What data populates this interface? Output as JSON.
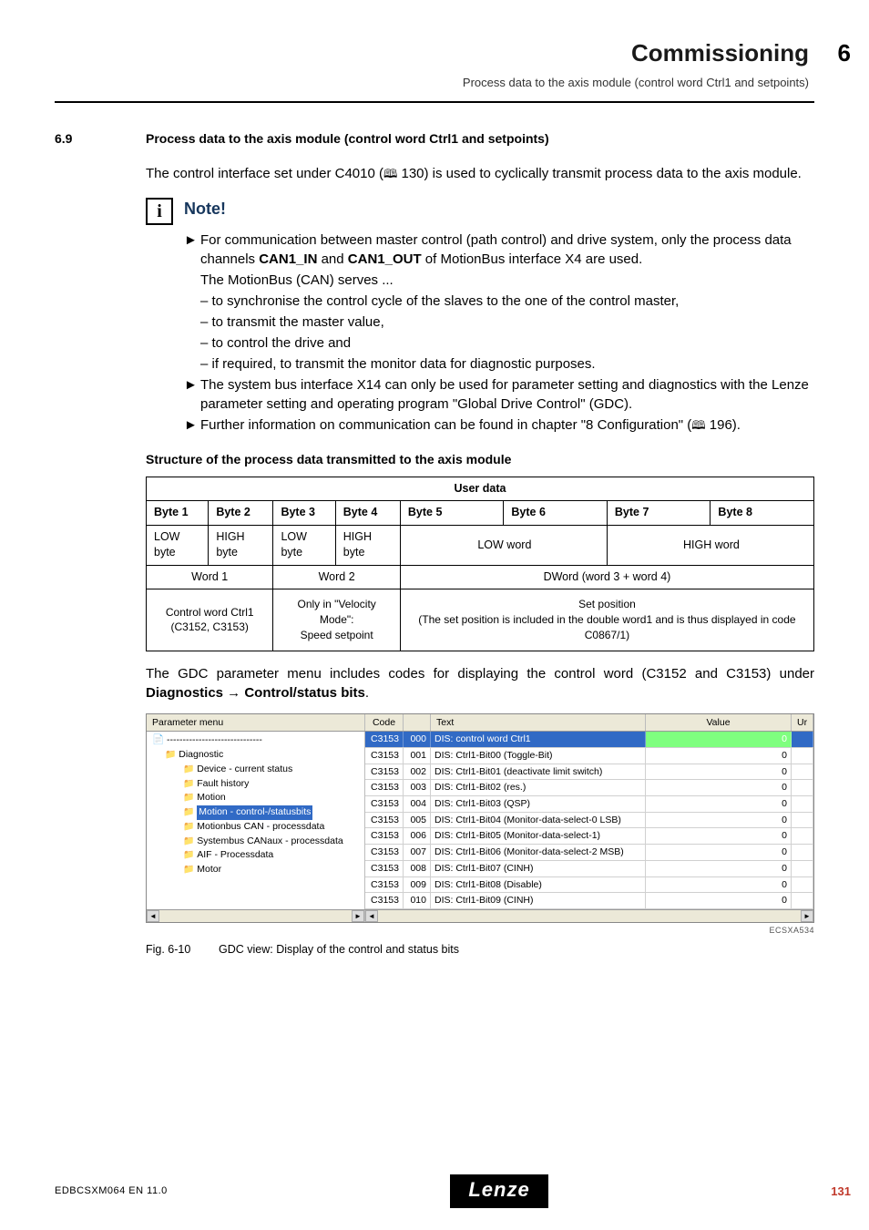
{
  "header": {
    "title": "Commissioning",
    "chapter_num": "6",
    "subtitle": "Process data to the axis module (control word Ctrl1 and setpoints)"
  },
  "section": {
    "num": "6.9",
    "title": "Process data to the axis module (control word Ctrl1 and setpoints)"
  },
  "intro": {
    "line1_a": "The control interface set under C4010 (",
    "line1_b": " 130) is used to cyclically transmit process data to the axis module."
  },
  "note": {
    "label": "Note!",
    "b1_a": "For communication between master control (path control) and drive system, only the process data channels ",
    "b1_bold1": "CAN1_IN",
    "b1_mid": " and ",
    "b1_bold2": "CAN1_OUT",
    "b1_c": " of MotionBus interface X4 are used.",
    "serves": "The MotionBus (CAN) serves ...",
    "d1": "– to synchronise the control cycle of the slaves to the one of the control master,",
    "d2": "– to transmit the master value,",
    "d3": "– to control the drive and",
    "d4": "– if required, to transmit the monitor data for diagnostic purposes.",
    "b2": "The system bus interface X14 can only be used for parameter setting and diagnostics with the Lenze parameter setting and operating program \"Global Drive Control\" (GDC).",
    "b3_a": "Further information on communication can be found in chapter \"8 Configuration\" (",
    "b3_b": " 196)."
  },
  "struct_title": "Structure of the process data transmitted to the axis module",
  "table": {
    "userdata": "User data",
    "bytes": [
      "Byte 1",
      "Byte 2",
      "Byte 3",
      "Byte 4",
      "Byte 5",
      "Byte 6",
      "Byte 7",
      "Byte 8"
    ],
    "row2": [
      "LOW byte",
      "HIGH byte",
      "LOW byte",
      "HIGH byte",
      "LOW word",
      "HIGH word"
    ],
    "row3": [
      "Word 1",
      "Word 2",
      "DWord (word 3 + word 4)"
    ],
    "row4": {
      "c1": "Control word Ctrl1\n(C3152, C3153)",
      "c2": "Only in \"Velocity Mode\":\nSpeed setpoint",
      "c3": "Set position\n(The set position is included in the double word1 and is thus displayed in code C0867/1)"
    }
  },
  "gdc_para_a": "The GDC parameter menu includes codes for displaying the control word (C3152 and C3153) under ",
  "gdc_para_bold": "Diagnostics → Control/status bits",
  "gdc_para_c": ".",
  "gdc": {
    "cols": {
      "pm": "Parameter menu",
      "code": "Code",
      "text": "Text",
      "value": "Value",
      "ur": "Ur"
    },
    "tree": {
      "root": "------------------------------",
      "diag": "Diagnostic",
      "items": [
        "Device - current status",
        "Fault history",
        "Motion",
        "Motion - control-/statusbits",
        "Motionbus CAN - processdata",
        "Systembus CANaux - processdata",
        "AIF - Processdata",
        "Motor"
      ],
      "hl_index": 3
    },
    "rows": [
      {
        "code": "C3153",
        "sub": "000",
        "text": "DIS: control word Ctrl1",
        "val": "0",
        "hl": true
      },
      {
        "code": "C3153",
        "sub": "001",
        "text": "DIS: Ctrl1-Bit00 (Toggle-Bit)",
        "val": "0"
      },
      {
        "code": "C3153",
        "sub": "002",
        "text": "DIS: Ctrl1-Bit01 (deactivate limit switch)",
        "val": "0"
      },
      {
        "code": "C3153",
        "sub": "003",
        "text": "DIS: Ctrl1-Bit02 (res.)",
        "val": "0"
      },
      {
        "code": "C3153",
        "sub": "004",
        "text": "DIS: Ctrl1-Bit03 (QSP)",
        "val": "0"
      },
      {
        "code": "C3153",
        "sub": "005",
        "text": "DIS: Ctrl1-Bit04 (Monitor-data-select-0 LSB)",
        "val": "0"
      },
      {
        "code": "C3153",
        "sub": "006",
        "text": "DIS: Ctrl1-Bit05 (Monitor-data-select-1)",
        "val": "0"
      },
      {
        "code": "C3153",
        "sub": "007",
        "text": "DIS: Ctrl1-Bit06 (Monitor-data-select-2 MSB)",
        "val": "0"
      },
      {
        "code": "C3153",
        "sub": "008",
        "text": "DIS: Ctrl1-Bit07 (CINH)",
        "val": "0"
      },
      {
        "code": "C3153",
        "sub": "009",
        "text": "DIS: Ctrl1-Bit08 (Disable)",
        "val": "0"
      },
      {
        "code": "C3153",
        "sub": "010",
        "text": "DIS: Ctrl1-Bit09 (CINH)",
        "val": "0"
      }
    ]
  },
  "fig_code": "ECSXA534",
  "fig": {
    "num": "Fig. 6-10",
    "caption": "GDC view: Display of the control and status bits"
  },
  "footer": {
    "left": "EDBCSXM064 EN 11.0",
    "logo": "Lenze",
    "page": "131"
  }
}
